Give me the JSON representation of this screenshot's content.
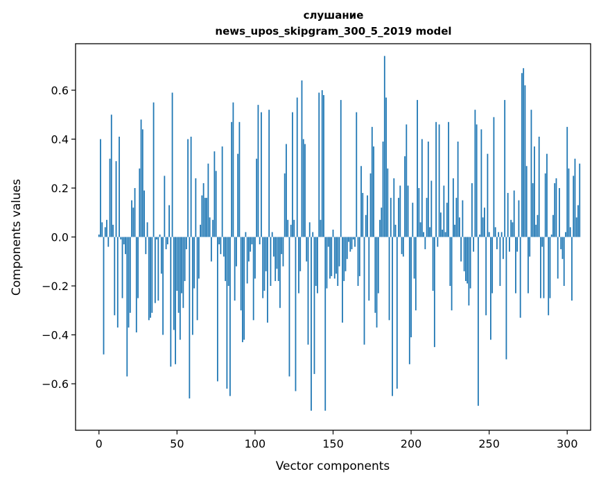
{
  "chart_data": {
    "type": "bar",
    "title": "слушание",
    "subtitle": "news_upos_skipgram_300_5_2019 model",
    "xlabel": "Vector components",
    "ylabel": "Components values",
    "xlim": [
      -15,
      315
    ],
    "ylim": [
      -0.79,
      0.79
    ],
    "xticks": [
      0,
      50,
      100,
      150,
      200,
      250,
      300
    ],
    "yticks": [
      -0.6,
      -0.4,
      -0.2,
      0.0,
      0.2,
      0.4,
      0.6
    ],
    "xtick_labels": [
      "0",
      "50",
      "100",
      "150",
      "200",
      "250",
      "300"
    ],
    "ytick_labels": [
      "−0.6",
      "−0.4",
      "−0.2",
      "0.0",
      "0.2",
      "0.4",
      "0.6"
    ],
    "grid": false,
    "color": "#1f77b4",
    "values": [
      0.01,
      0.4,
      0.06,
      -0.48,
      0.04,
      0.07,
      -0.04,
      0.32,
      0.5,
      0.05,
      -0.32,
      0.31,
      -0.37,
      0.41,
      -0.01,
      -0.25,
      -0.03,
      -0.07,
      -0.57,
      -0.37,
      -0.31,
      0.15,
      0.12,
      0.2,
      -0.39,
      -0.25,
      0.28,
      0.48,
      0.44,
      0.19,
      -0.07,
      0.06,
      -0.34,
      -0.33,
      -0.31,
      0.55,
      -0.27,
      -0.01,
      -0.26,
      0.01,
      -0.15,
      -0.4,
      0.25,
      -0.05,
      -0.03,
      0.13,
      -0.53,
      0.59,
      -0.38,
      -0.52,
      -0.22,
      -0.31,
      -0.42,
      -0.23,
      -0.29,
      -0.18,
      -0.05,
      0.4,
      -0.66,
      0.41,
      -0.4,
      -0.21,
      0.24,
      -0.34,
      -0.17,
      0.05,
      0.17,
      0.22,
      0.16,
      0.16,
      0.3,
      0.08,
      -0.1,
      0.07,
      0.35,
      0.27,
      -0.59,
      -0.03,
      -0.07,
      0.37,
      -0.08,
      -0.18,
      -0.62,
      -0.2,
      -0.65,
      0.47,
      0.55,
      -0.26,
      -0.12,
      0.34,
      0.47,
      -0.3,
      -0.43,
      -0.42,
      0.02,
      -0.19,
      -0.1,
      -0.06,
      -0.03,
      -0.34,
      -0.17,
      0.32,
      0.54,
      -0.03,
      0.51,
      -0.25,
      -0.22,
      -0.14,
      -0.35,
      0.52,
      -0.2,
      0.02,
      -0.08,
      -0.18,
      -0.13,
      -0.18,
      -0.29,
      -0.07,
      -0.12,
      0.26,
      0.38,
      0.07,
      -0.57,
      0.05,
      0.51,
      0.07,
      -0.63,
      0.57,
      -0.23,
      -0.14,
      0.64,
      0.4,
      0.38,
      -0.1,
      -0.44,
      0.06,
      -0.71,
      0.02,
      -0.56,
      -0.2,
      -0.23,
      0.59,
      0.07,
      0.6,
      0.58,
      -0.71,
      -0.21,
      -0.04,
      -0.17,
      -0.16,
      0.03,
      -0.17,
      -0.15,
      -0.2,
      -0.12,
      0.56,
      -0.35,
      -0.18,
      -0.14,
      -0.09,
      -0.02,
      -0.06,
      -0.05,
      -0.01,
      -0.04,
      0.51,
      -0.2,
      -0.16,
      0.29,
      0.18,
      -0.44,
      0.09,
      0.17,
      -0.26,
      0.26,
      0.45,
      0.37,
      -0.31,
      -0.37,
      -0.23,
      0.07,
      0.12,
      0.39,
      0.74,
      0.57,
      0.28,
      -0.34,
      0.16,
      -0.65,
      0.24,
      0.05,
      -0.62,
      0.16,
      0.21,
      -0.07,
      -0.08,
      0.33,
      0.46,
      0.21,
      -0.52,
      -0.41,
      0.14,
      -0.17,
      -0.3,
      0.56,
      0.2,
      0.06,
      0.4,
      0.02,
      -0.05,
      0.16,
      0.39,
      0.04,
      0.23,
      -0.22,
      -0.45,
      0.47,
      -0.04,
      0.46,
      0.1,
      0.03,
      0.21,
      0.02,
      0.14,
      0.47,
      -0.2,
      -0.3,
      0.24,
      0.05,
      0.16,
      0.39,
      0.08,
      -0.1,
      0.15,
      -0.14,
      -0.18,
      -0.19,
      -0.28,
      -0.21,
      0.22,
      -0.06,
      0.52,
      0.46,
      -0.69,
      0.01,
      0.44,
      0.08,
      0.12,
      -0.32,
      0.34,
      0.02,
      -0.42,
      -0.23,
      0.49,
      0.04,
      -0.05,
      0.02,
      -0.2,
      0.02,
      -0.09,
      0.56,
      -0.5,
      0.18,
      -0.06,
      0.07,
      0.06,
      0.19,
      -0.23,
      -0.06,
      0.15,
      -0.33,
      0.67,
      0.69,
      0.62,
      0.29,
      -0.23,
      -0.08,
      0.52,
      0.22,
      0.37,
      0.05,
      0.09,
      0.41,
      -0.25,
      -0.04,
      -0.25,
      0.26,
      0.34,
      -0.32,
      -0.25,
      0.01,
      0.09,
      0.22,
      0.24,
      -0.17,
      0.2,
      -0.05,
      -0.09,
      -0.2,
      0.02,
      0.45,
      0.28,
      0.04,
      -0.26,
      0.25,
      0.32,
      0.08,
      0.13,
      0.3
    ]
  }
}
